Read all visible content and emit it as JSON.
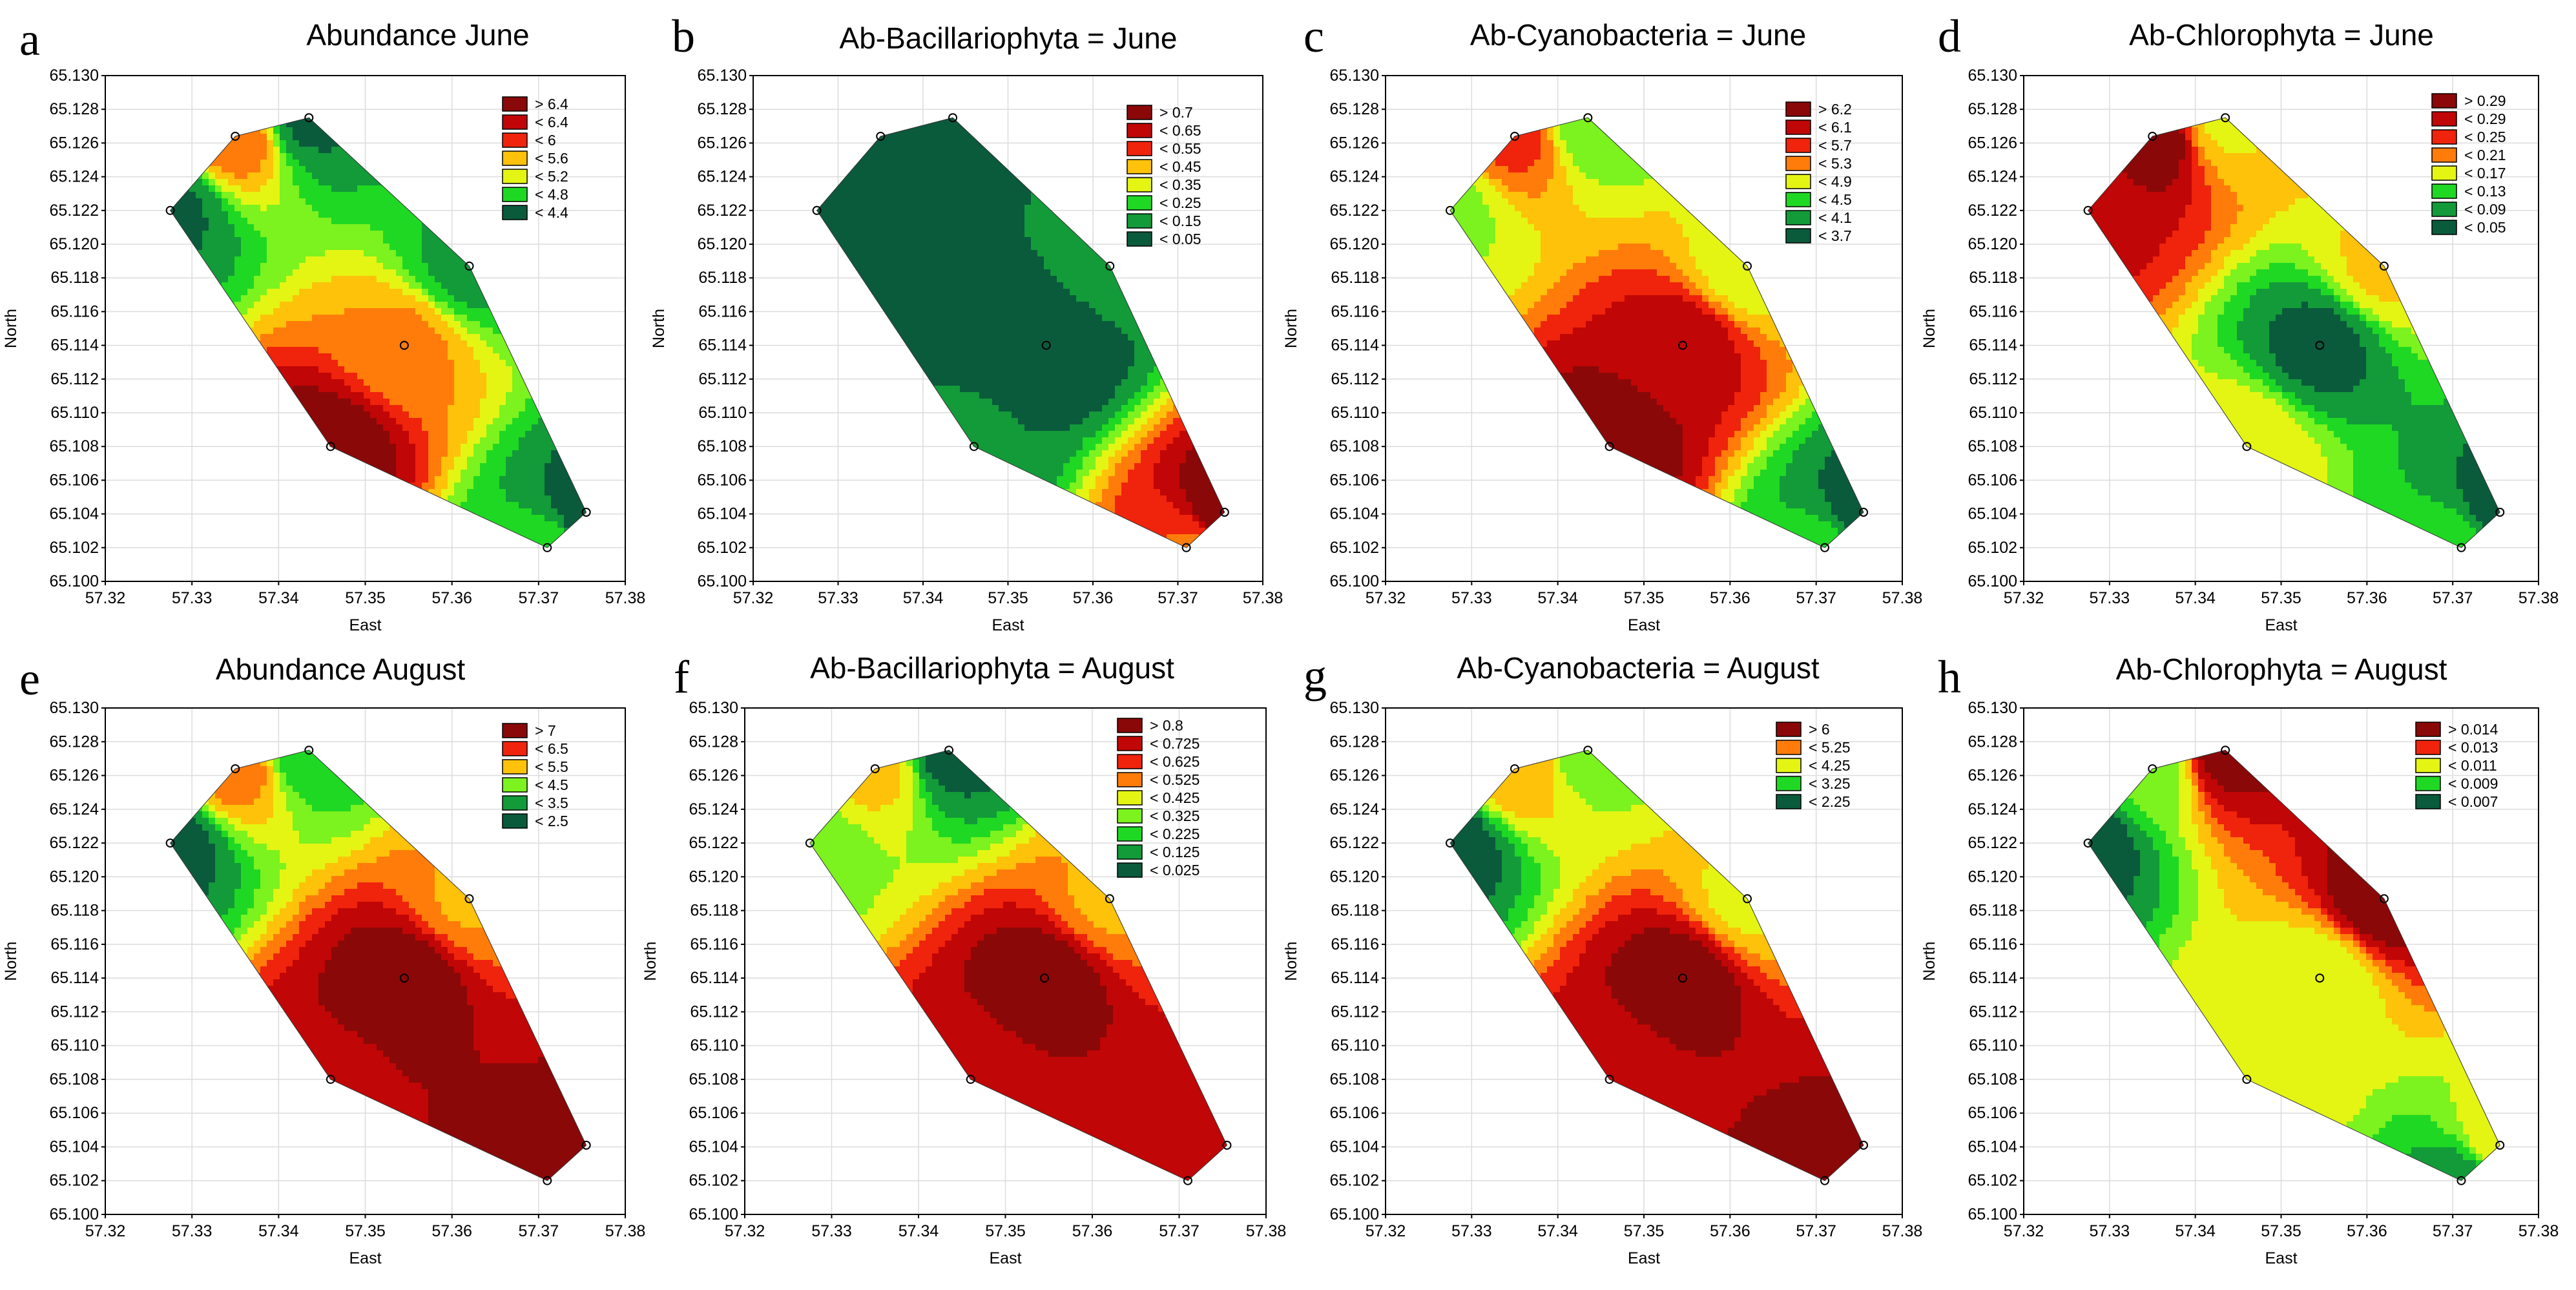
{
  "figure": {
    "description_label": "Contour maps of phytoplankton abundance"
  },
  "stations": {
    "x": [
      57.3275,
      57.335,
      57.3435,
      57.346,
      57.3545,
      57.362,
      57.371,
      57.3755
    ],
    "y": [
      65.122,
      65.1264,
      65.1275,
      65.108,
      65.114,
      65.1187,
      65.102,
      65.1041
    ]
  },
  "colors": {
    "gradient": [
      "#0a5a3c",
      "#139a39",
      "#1fd823",
      "#7cf21e",
      "#e4f513",
      "#fdc209",
      "#ff7c0a",
      "#f0230c",
      "#c00606",
      "#8a0808"
    ],
    "grid": "#dcdcdc",
    "border": "#000000"
  },
  "chart_data": [
    {
      "id": "a",
      "letter": "a",
      "type": "heatmap",
      "title": "Abundance June",
      "xlabel": "East",
      "ylabel": "North",
      "xlim": [
        57.32,
        57.38
      ],
      "ylim": [
        65.1,
        65.13
      ],
      "xticks": [
        "57.32",
        "57.33",
        "57.34",
        "57.35",
        "57.36",
        "57.37",
        "57.38"
      ],
      "yticks": [
        "65.100",
        "65.102",
        "65.104",
        "65.106",
        "65.108",
        "65.110",
        "65.112",
        "65.114",
        "65.116",
        "65.118",
        "65.120",
        "65.122",
        "65.124",
        "65.126",
        "65.128",
        "65.130"
      ],
      "legend": [
        "> 6.4",
        "< 6.4",
        "< 6",
        "< 5.6",
        "< 5.2",
        "< 4.8",
        "< 4.4"
      ],
      "legend_colors": [
        "#8a0808",
        "#c00606",
        "#f0230c",
        "#fdc209",
        "#e4f513",
        "#1fd823",
        "#0a5a3c"
      ],
      "station_values": [
        4.4,
        5.8,
        4.4,
        6.5,
        5.7,
        4.6,
        4.8,
        4.3
      ],
      "value_range": [
        4.2,
        6.6
      ]
    },
    {
      "id": "b",
      "letter": "b",
      "type": "heatmap",
      "title": "Ab-Bacillariophyta = June",
      "xlabel": "East",
      "ylabel": "North",
      "xlim": [
        57.32,
        57.38
      ],
      "ylim": [
        65.1,
        65.13
      ],
      "xticks": [
        "57.32",
        "57.33",
        "57.34",
        "57.35",
        "57.36",
        "57.37",
        "57.38"
      ],
      "yticks": [
        "65.100",
        "65.102",
        "65.104",
        "65.106",
        "65.108",
        "65.110",
        "65.112",
        "65.114",
        "65.116",
        "65.118",
        "65.120",
        "65.122",
        "65.124",
        "65.126",
        "65.128",
        "65.130"
      ],
      "legend": [
        "> 0.7",
        "< 0.65",
        "< 0.55",
        "< 0.45",
        "< 0.35",
        "< 0.25",
        "< 0.15",
        "< 0.05"
      ],
      "legend_colors": [
        "#8a0808",
        "#c00606",
        "#f0230c",
        "#fdc209",
        "#e4f513",
        "#1fd823",
        "#139a39",
        "#0a5a3c"
      ],
      "station_values": [
        0.02,
        0.04,
        0.06,
        0.08,
        0.0,
        0.1,
        0.5,
        0.72
      ],
      "value_range": [
        0.0,
        0.72
      ]
    },
    {
      "id": "c",
      "letter": "c",
      "type": "heatmap",
      "title": "Ab-Cyanobacteria = June",
      "xlabel": "East",
      "ylabel": "North",
      "xlim": [
        57.32,
        57.38
      ],
      "ylim": [
        65.1,
        65.13
      ],
      "xticks": [
        "57.32",
        "57.33",
        "57.34",
        "57.35",
        "57.36",
        "57.37",
        "57.38"
      ],
      "yticks": [
        "65.100",
        "65.102",
        "65.104",
        "65.106",
        "65.108",
        "65.110",
        "65.112",
        "65.114",
        "65.116",
        "65.118",
        "65.120",
        "65.122",
        "65.124",
        "65.126",
        "65.128",
        "65.130"
      ],
      "legend": [
        "> 6.2",
        "< 6.1",
        "< 5.7",
        "< 5.3",
        "< 4.9",
        "< 4.5",
        "< 4.1",
        "< 3.7"
      ],
      "legend_colors": [
        "#8a0808",
        "#c00606",
        "#f0230c",
        "#ff7c0a",
        "#e4f513",
        "#1fd823",
        "#139a39",
        "#0a5a3c"
      ],
      "station_values": [
        4.6,
        5.6,
        4.4,
        6.3,
        6.0,
        4.8,
        4.2,
        3.6
      ],
      "value_range": [
        3.5,
        6.4
      ]
    },
    {
      "id": "d",
      "letter": "d",
      "type": "heatmap",
      "title": "Ab-Chlorophyta = June",
      "xlabel": "East",
      "ylabel": "North",
      "xlim": [
        57.32,
        57.38
      ],
      "ylim": [
        65.1,
        65.13
      ],
      "xticks": [
        "57.32",
        "57.33",
        "57.34",
        "57.35",
        "57.36",
        "57.37",
        "57.38"
      ],
      "yticks": [
        "65.100",
        "65.102",
        "65.104",
        "65.106",
        "65.108",
        "65.110",
        "65.112",
        "65.114",
        "65.116",
        "65.118",
        "65.120",
        "65.122",
        "65.124",
        "65.126",
        "65.128",
        "65.130"
      ],
      "legend": [
        "> 0.29",
        "< 0.29",
        "< 0.25",
        "< 0.21",
        "< 0.17",
        "< 0.13",
        "< 0.09",
        "< 0.05"
      ],
      "legend_colors": [
        "#8a0808",
        "#c00606",
        "#f0230c",
        "#ff7c0a",
        "#e4f513",
        "#1fd823",
        "#139a39",
        "#0a5a3c"
      ],
      "station_values": [
        0.26,
        0.3,
        0.16,
        0.16,
        0.04,
        0.17,
        0.1,
        0.03
      ],
      "value_range": [
        0.02,
        0.31
      ]
    },
    {
      "id": "e",
      "letter": "e",
      "type": "heatmap",
      "title": "Abundance August",
      "xlabel": "East",
      "ylabel": "North",
      "xlim": [
        57.32,
        57.38
      ],
      "ylim": [
        65.1,
        65.13
      ],
      "xticks": [
        "57.32",
        "57.33",
        "57.34",
        "57.35",
        "57.36",
        "57.37",
        "57.38"
      ],
      "yticks": [
        "65.100",
        "65.102",
        "65.104",
        "65.106",
        "65.108",
        "65.110",
        "65.112",
        "65.114",
        "65.116",
        "65.118",
        "65.120",
        "65.122",
        "65.124",
        "65.126",
        "65.128",
        "65.130"
      ],
      "legend": [
        "> 7",
        "< 6.5",
        "< 5.5",
        "< 4.5",
        "< 3.5",
        "< 2.5"
      ],
      "legend_colors": [
        "#8a0808",
        "#f0230c",
        "#fdc209",
        "#7cf21e",
        "#139a39",
        "#0a5a3c"
      ],
      "station_values": [
        2.3,
        5.5,
        3.2,
        6.8,
        7.2,
        5.2,
        7.1,
        6.9
      ],
      "value_range": [
        2.0,
        7.4
      ]
    },
    {
      "id": "f",
      "letter": "f",
      "type": "heatmap",
      "title": "Ab-Bacillariophyta = August",
      "xlabel": "East",
      "ylabel": "North",
      "xlim": [
        57.32,
        57.38
      ],
      "ylim": [
        65.1,
        65.13
      ],
      "xticks": [
        "57.32",
        "57.33",
        "57.34",
        "57.35",
        "57.36",
        "57.37",
        "57.38"
      ],
      "yticks": [
        "65.100",
        "65.102",
        "65.104",
        "65.106",
        "65.108",
        "65.110",
        "65.112",
        "65.114",
        "65.116",
        "65.118",
        "65.120",
        "65.122",
        "65.124",
        "65.126",
        "65.128",
        "65.130"
      ],
      "legend": [
        "> 0.8",
        "< 0.725",
        "< 0.625",
        "< 0.525",
        "< 0.425",
        "< 0.325",
        "< 0.225",
        "< 0.125",
        "< 0.025"
      ],
      "legend_colors": [
        "#8a0808",
        "#c00606",
        "#f0230c",
        "#ff7c0a",
        "#e4f513",
        "#7cf21e",
        "#1fd823",
        "#139a39",
        "#0a5a3c"
      ],
      "station_values": [
        0.3,
        0.45,
        0.05,
        0.72,
        0.82,
        0.5,
        0.72,
        0.7
      ],
      "value_range": [
        0.0,
        0.85
      ]
    },
    {
      "id": "g",
      "letter": "g",
      "type": "heatmap",
      "title": "Ab-Cyanobacteria = August",
      "xlabel": "East",
      "ylabel": "North",
      "xlim": [
        57.32,
        57.38
      ],
      "ylim": [
        65.1,
        65.13
      ],
      "xticks": [
        "57.32",
        "57.33",
        "57.34",
        "57.35",
        "57.36",
        "57.37",
        "57.38"
      ],
      "yticks": [
        "65.100",
        "65.102",
        "65.104",
        "65.106",
        "65.108",
        "65.110",
        "65.112",
        "65.114",
        "65.116",
        "65.118",
        "65.120",
        "65.122",
        "65.124",
        "65.126",
        "65.128",
        "65.130"
      ],
      "legend": [
        "> 6",
        "< 5.25",
        "< 4.25",
        "< 3.25",
        "< 2.25"
      ],
      "legend_colors": [
        "#8a0808",
        "#ff7c0a",
        "#e4f513",
        "#1fd823",
        "#0a5a3c"
      ],
      "station_values": [
        2.0,
        4.8,
        3.6,
        6.0,
        6.6,
        4.2,
        6.5,
        6.3
      ],
      "value_range": [
        1.8,
        6.8
      ]
    },
    {
      "id": "h",
      "letter": "h",
      "type": "heatmap",
      "title": "Ab-Chlorophyta = August",
      "xlabel": "East",
      "ylabel": "North",
      "xlim": [
        57.32,
        57.38
      ],
      "ylim": [
        65.1,
        65.13
      ],
      "xticks": [
        "57.32",
        "57.33",
        "57.34",
        "57.35",
        "57.36",
        "57.37",
        "57.38"
      ],
      "yticks": [
        "65.100",
        "65.102",
        "65.104",
        "65.106",
        "65.108",
        "65.110",
        "65.112",
        "65.114",
        "65.116",
        "65.118",
        "65.120",
        "65.122",
        "65.124",
        "65.126",
        "65.128",
        "65.130"
      ],
      "legend": [
        "> 0.014",
        "< 0.013",
        "< 0.011",
        "< 0.009",
        "< 0.007"
      ],
      "legend_colors": [
        "#8a0808",
        "#f0230c",
        "#e4f513",
        "#1fd823",
        "#0a5a3c"
      ],
      "station_values": [
        0.0065,
        0.009,
        0.0145,
        0.0105,
        0.0098,
        0.0148,
        0.0072,
        0.0105
      ],
      "value_range": [
        0.006,
        0.015
      ]
    }
  ]
}
